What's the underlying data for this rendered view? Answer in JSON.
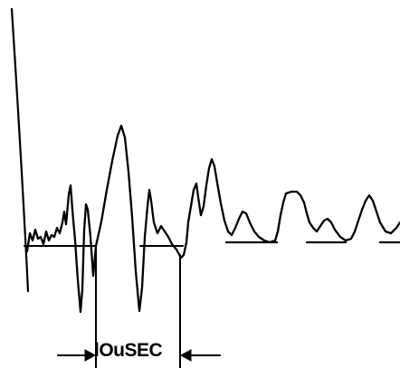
{
  "scale_bar": {
    "label": "lOuSEC"
  }
}
